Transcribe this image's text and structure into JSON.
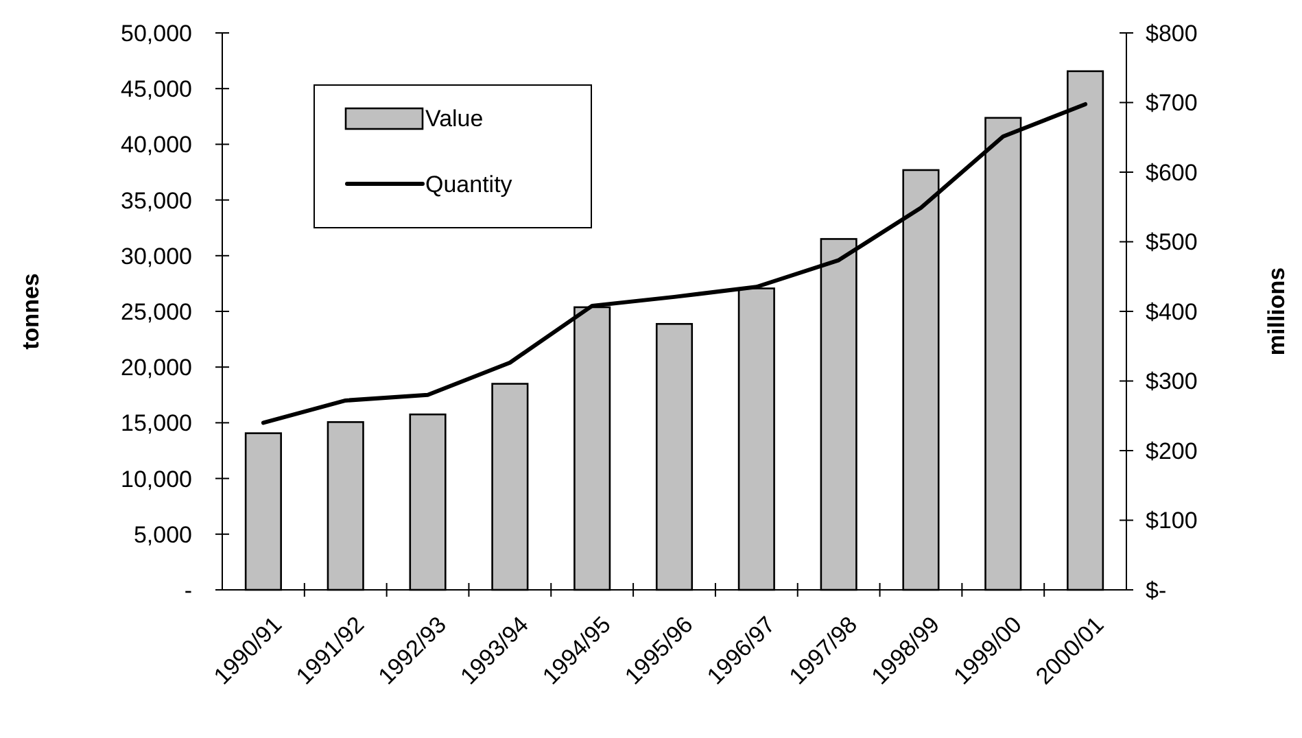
{
  "chart_data": {
    "type": "bar",
    "xlabel": null,
    "ylabel": "tonnes",
    "y2label": "millions",
    "categories": [
      "1990/91",
      "1991/92",
      "1992/93",
      "1993/94",
      "1994/95",
      "1995/96",
      "1996/97",
      "1997/98",
      "1998/99",
      "1999/00",
      "2000/01"
    ],
    "series": [
      {
        "name": "Value",
        "axis": "y2",
        "color": "#c0c0c0",
        "values": [
          225,
          241,
          252,
          296,
          406,
          382,
          433,
          504,
          603,
          678,
          745
        ]
      },
      {
        "name": "Quantity",
        "type": "line",
        "axis": "y",
        "color": "#000000",
        "values": [
          15000,
          17000,
          17500,
          20400,
          25500,
          26300,
          27200,
          29600,
          34300,
          40700,
          43600
        ]
      }
    ],
    "ylim": [
      0,
      50000
    ],
    "yticks": [
      {
        "value": 0,
        "label": "-"
      },
      {
        "value": 5000,
        "label": "5,000"
      },
      {
        "value": 10000,
        "label": "10,000"
      },
      {
        "value": 15000,
        "label": "15,000"
      },
      {
        "value": 20000,
        "label": "20,000"
      },
      {
        "value": 25000,
        "label": "25,000"
      },
      {
        "value": 30000,
        "label": "30,000"
      },
      {
        "value": 35000,
        "label": "35,000"
      },
      {
        "value": 40000,
        "label": "40,000"
      },
      {
        "value": 45000,
        "label": "45,000"
      },
      {
        "value": 50000,
        "label": "50,000"
      }
    ],
    "y2lim": [
      0,
      800
    ],
    "y2ticks": [
      {
        "value": 0,
        "label": "$-"
      },
      {
        "value": 100,
        "label": "$100"
      },
      {
        "value": 200,
        "label": "$200"
      },
      {
        "value": 300,
        "label": "$300"
      },
      {
        "value": 400,
        "label": "$400"
      },
      {
        "value": 500,
        "label": "$500"
      },
      {
        "value": 600,
        "label": "$600"
      },
      {
        "value": 700,
        "label": "$700"
      },
      {
        "value": 800,
        "label": "$800"
      }
    ],
    "grid": false,
    "legend": "top left",
    "marker": "none",
    "line_style": "solid"
  }
}
